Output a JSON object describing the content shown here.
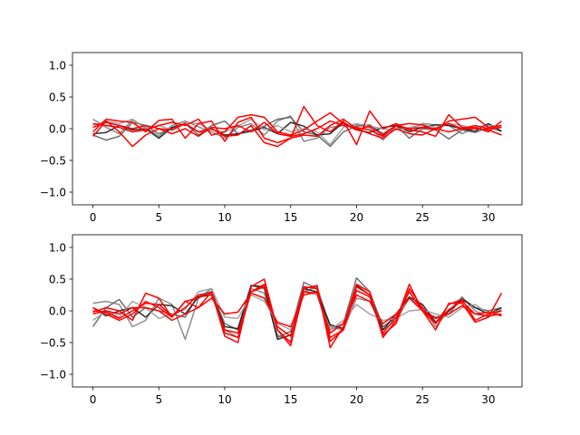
{
  "chart_data": [
    {
      "type": "line",
      "title": "",
      "xlabel": "",
      "ylabel": "",
      "xlim": [
        -1.55,
        32.55
      ],
      "ylim": [
        -1.2,
        1.2
      ],
      "xticks": [
        0,
        5,
        10,
        15,
        20,
        25,
        30
      ],
      "yticks": [
        -1.0,
        -0.5,
        0.0,
        0.5,
        1.0
      ],
      "xtick_labels": [
        "0",
        "5",
        "10",
        "15",
        "20",
        "25",
        "30"
      ],
      "ytick_labels": [
        "−1.0",
        "−0.5",
        "0.0",
        "0.5",
        "1.0"
      ],
      "grid": false,
      "series": [
        {
          "color": "#808080",
          "opacity": 0.9,
          "values": [
            0.15,
            0.02,
            -0.08,
            0.14,
            0.02,
            -0.12,
            0.05,
            0.12,
            0.03,
            -0.05,
            -0.15,
            0.02,
            0.08,
            -0.1,
            0.12,
            0.2,
            -0.2,
            -0.15,
            0.02,
            0.05,
            0.06,
            0.02,
            -0.18,
            0.04,
            -0.02,
            0.08,
            0.06,
            0.05,
            -0.08,
            0.02,
            0.06,
            0.02
          ]
        },
        {
          "color": "#606060",
          "opacity": 0.9,
          "values": [
            -0.1,
            -0.18,
            -0.12,
            0.1,
            0.05,
            -0.08,
            0.0,
            0.08,
            -0.1,
            0.05,
            0.12,
            -0.08,
            -0.02,
            0.04,
            0.15,
            0.18,
            -0.05,
            -0.1,
            -0.28,
            -0.05,
            0.04,
            0.06,
            -0.08,
            0.05,
            -0.15,
            0.0,
            -0.02,
            -0.16,
            -0.02,
            -0.06,
            0.02,
            -0.04
          ]
        },
        {
          "color": "#1a1a1a",
          "opacity": 0.9,
          "values": [
            -0.08,
            -0.06,
            0.05,
            -0.02,
            0.0,
            -0.15,
            0.02,
            0.08,
            -0.05,
            0.0,
            -0.1,
            -0.08,
            -0.04,
            0.02,
            -0.08,
            0.1,
            0.04,
            -0.1,
            -0.08,
            0.1,
            -0.02,
            -0.06,
            0.02,
            0.05,
            -0.05,
            0.02,
            0.06,
            0.05,
            0.0,
            -0.04,
            0.08,
            -0.04
          ]
        },
        {
          "color": "#9a9a9a",
          "opacity": 0.9,
          "values": [
            0.05,
            0.12,
            0.08,
            0.15,
            0.0,
            0.05,
            -0.02,
            0.1,
            0.08,
            -0.02,
            -0.05,
            0.04,
            0.15,
            -0.02,
            0.05,
            -0.05,
            0.0,
            -0.05,
            -0.25,
            0.02,
            0.08,
            0.04,
            0.0,
            -0.02,
            0.02,
            0.06,
            0.02,
            0.08,
            0.05,
            0.0,
            0.05,
            0.02
          ]
        },
        {
          "color": "#ff0000",
          "opacity": 1.0,
          "values": [
            -0.05,
            0.15,
            0.12,
            0.1,
            -0.05,
            0.13,
            0.15,
            -0.15,
            0.08,
            0.12,
            -0.2,
            0.1,
            0.18,
            -0.15,
            -0.22,
            -0.15,
            0.35,
            0.05,
            -0.05,
            0.12,
            -0.25,
            0.28,
            0.0,
            0.08,
            -0.02,
            -0.05,
            -0.12,
            0.22,
            0.02,
            0.02,
            -0.05,
            0.12
          ]
        },
        {
          "color": "#ff0000",
          "opacity": 1.0,
          "values": [
            0.08,
            0.05,
            0.02,
            -0.05,
            -0.02,
            0.05,
            0.1,
            0.05,
            0.15,
            -0.1,
            -0.05,
            0.18,
            0.22,
            0.18,
            -0.05,
            -0.1,
            -0.02,
            0.12,
            0.25,
            0.08,
            -0.02,
            0.04,
            -0.1,
            0.05,
            0.08,
            0.06,
            -0.02,
            0.12,
            0.15,
            0.18,
            0.02,
            0.05
          ]
        },
        {
          "color": "#ff0000",
          "opacity": 1.0,
          "values": [
            -0.12,
            0.12,
            -0.05,
            -0.28,
            -0.1,
            0.0,
            -0.02,
            0.08,
            -0.05,
            0.0,
            -0.12,
            -0.1,
            0.05,
            -0.22,
            -0.28,
            -0.15,
            -0.1,
            -0.12,
            0.05,
            0.15,
            0.0,
            -0.08,
            -0.15,
            0.0,
            -0.08,
            -0.1,
            0.0,
            0.08,
            0.0,
            0.0,
            -0.02,
            -0.1
          ]
        },
        {
          "color": "#ff0000",
          "opacity": 1.0,
          "values": [
            0.02,
            0.1,
            0.05,
            0.0,
            0.05,
            0.0,
            -0.08,
            0.0,
            -0.12,
            0.02,
            0.0,
            0.05,
            -0.05,
            0.1,
            -0.08,
            -0.12,
            -0.08,
            0.0,
            0.12,
            0.05,
            0.02,
            -0.02,
            -0.12,
            0.05,
            0.0,
            0.02,
            0.0,
            -0.05,
            0.0,
            0.05,
            0.0,
            0.02
          ]
        }
      ]
    },
    {
      "type": "line",
      "title": "",
      "xlabel": "",
      "ylabel": "",
      "xlim": [
        -1.55,
        32.55
      ],
      "ylim": [
        -1.2,
        1.2
      ],
      "xticks": [
        0,
        5,
        10,
        15,
        20,
        25,
        30
      ],
      "yticks": [
        -1.0,
        -0.5,
        0.0,
        0.5,
        1.0
      ],
      "xtick_labels": [
        "0",
        "5",
        "10",
        "15",
        "20",
        "25",
        "30"
      ],
      "ytick_labels": [
        "−1.0",
        "−0.5",
        "0.0",
        "0.5",
        "1.0"
      ],
      "grid": false,
      "series": [
        {
          "color": "#808080",
          "opacity": 0.9,
          "values": [
            0.12,
            0.15,
            0.1,
            -0.25,
            -0.15,
            0.2,
            0.1,
            -0.45,
            0.2,
            0.35,
            -0.3,
            -0.42,
            0.35,
            0.28,
            -0.38,
            -0.48,
            0.3,
            0.38,
            -0.25,
            -0.3,
            0.2,
            0.15,
            -0.3,
            -0.15,
            0.2,
            0.05,
            -0.25,
            0.0,
            0.22,
            0.0,
            -0.1,
            0.0
          ]
        },
        {
          "color": "#606060",
          "opacity": 0.9,
          "values": [
            -0.25,
            0.05,
            0.18,
            -0.1,
            0.05,
            0.0,
            -0.05,
            -0.1,
            0.25,
            0.3,
            -0.2,
            -0.3,
            0.4,
            0.35,
            -0.42,
            -0.32,
            0.45,
            0.35,
            -0.3,
            -0.2,
            0.52,
            0.3,
            -0.25,
            -0.1,
            0.3,
            0.0,
            -0.1,
            -0.05,
            0.2,
            0.05,
            0.0,
            0.05
          ]
        },
        {
          "color": "#1a1a1a",
          "opacity": 0.9,
          "values": [
            0.05,
            -0.08,
            0.0,
            0.05,
            -0.1,
            0.1,
            0.08,
            -0.05,
            0.22,
            0.25,
            -0.25,
            -0.28,
            0.4,
            0.38,
            -0.45,
            -0.38,
            0.35,
            0.3,
            -0.22,
            -0.28,
            0.4,
            0.25,
            -0.3,
            -0.05,
            0.22,
            0.1,
            -0.18,
            0.0,
            0.18,
            0.05,
            -0.05,
            0.05
          ]
        },
        {
          "color": "#9a9a9a",
          "opacity": 0.9,
          "values": [
            -0.15,
            0.0,
            -0.1,
            0.15,
            0.05,
            -0.12,
            -0.05,
            0.02,
            0.3,
            0.35,
            -0.1,
            -0.12,
            0.25,
            0.15,
            -0.2,
            -0.3,
            0.3,
            0.25,
            -0.3,
            -0.15,
            0.1,
            -0.05,
            -0.15,
            -0.12,
            0.0,
            0.02,
            -0.05,
            -0.1,
            0.05,
            0.1,
            -0.05,
            0.02
          ]
        },
        {
          "color": "#ff0000",
          "opacity": 1.0,
          "values": [
            -0.02,
            0.05,
            0.0,
            -0.15,
            0.28,
            0.2,
            -0.1,
            0.15,
            0.05,
            0.3,
            -0.4,
            -0.5,
            0.38,
            0.5,
            -0.3,
            -0.55,
            0.35,
            0.4,
            -0.58,
            -0.25,
            0.42,
            0.3,
            -0.42,
            -0.15,
            0.42,
            0.0,
            -0.3,
            0.12,
            0.12,
            -0.18,
            -0.1,
            0.28
          ]
        },
        {
          "color": "#ff0000",
          "opacity": 1.0,
          "values": [
            0.05,
            -0.05,
            -0.15,
            -0.05,
            0.15,
            0.05,
            -0.1,
            0.15,
            0.2,
            0.3,
            -0.35,
            -0.42,
            0.3,
            0.42,
            -0.3,
            -0.5,
            0.3,
            0.28,
            -0.42,
            -0.3,
            0.38,
            0.25,
            -0.38,
            -0.2,
            0.35,
            0.05,
            -0.2,
            0.1,
            0.18,
            -0.15,
            -0.05,
            0.0
          ]
        },
        {
          "color": "#ff0000",
          "opacity": 1.0,
          "values": [
            0.0,
            -0.02,
            -0.12,
            0.0,
            0.12,
            0.1,
            -0.08,
            0.05,
            0.25,
            0.25,
            -0.3,
            -0.35,
            0.3,
            0.38,
            -0.25,
            -0.4,
            0.38,
            0.35,
            -0.48,
            -0.3,
            0.32,
            0.22,
            -0.35,
            -0.1,
            0.3,
            0.0,
            -0.2,
            0.02,
            0.15,
            -0.05,
            -0.08,
            -0.05
          ]
        },
        {
          "color": "#ff0000",
          "opacity": 1.0,
          "values": [
            -0.05,
            0.0,
            -0.05,
            0.05,
            0.05,
            0.0,
            -0.15,
            -0.05,
            0.05,
            0.2,
            -0.05,
            -0.02,
            0.28,
            0.2,
            -0.18,
            -0.25,
            0.25,
            0.3,
            -0.35,
            -0.2,
            0.25,
            0.15,
            -0.2,
            -0.05,
            0.2,
            0.0,
            -0.12,
            -0.05,
            0.08,
            -0.05,
            -0.02,
            -0.08
          ]
        }
      ]
    }
  ]
}
